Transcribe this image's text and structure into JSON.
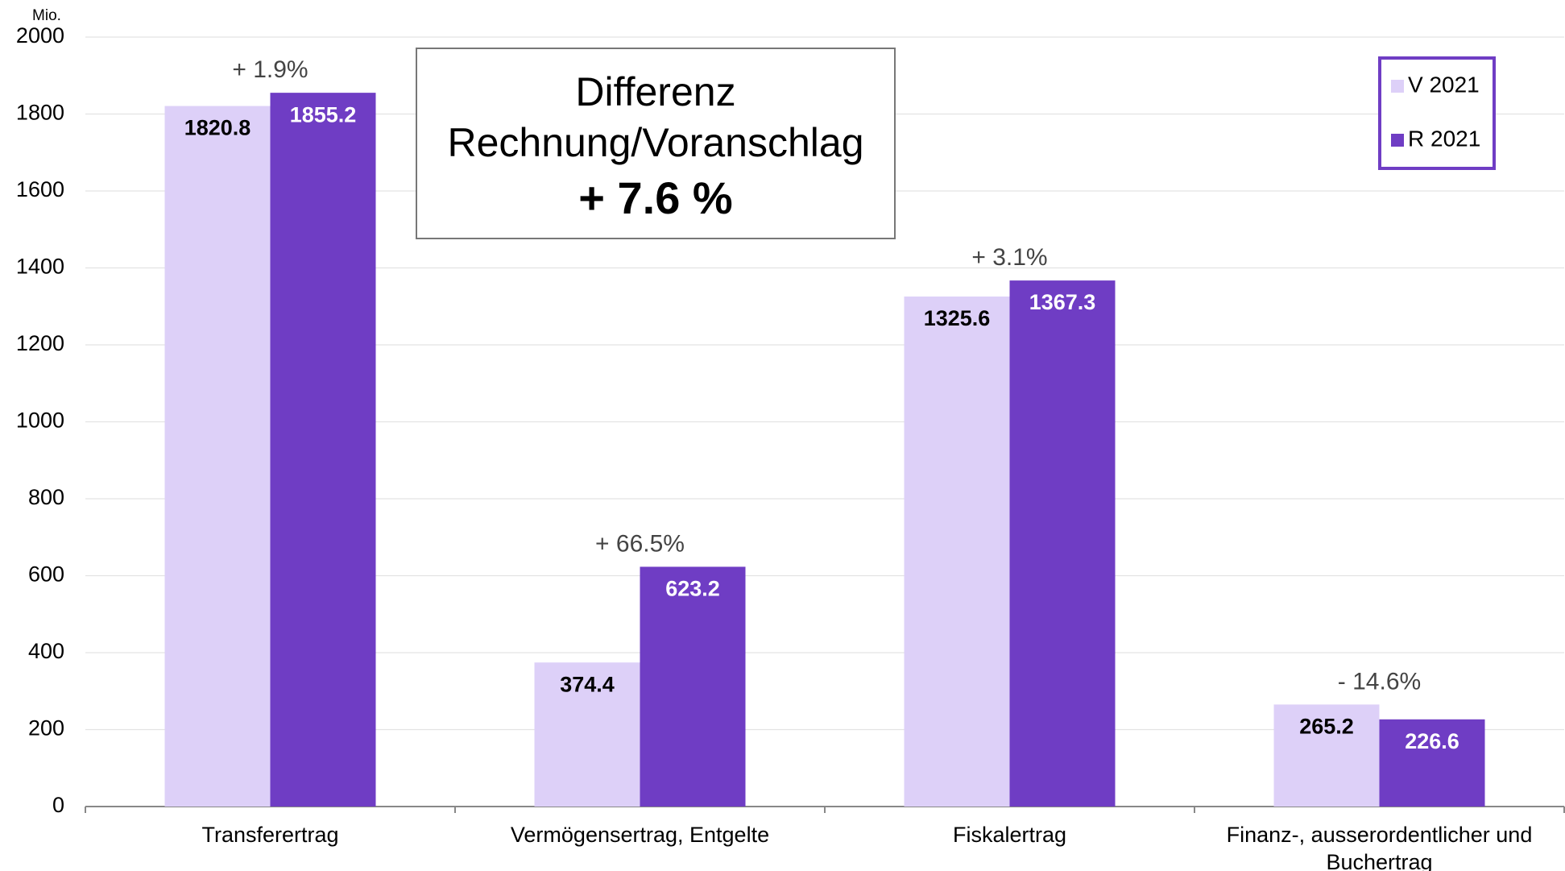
{
  "chart_data": {
    "type": "bar",
    "y_unit": "Mio.",
    "categories": [
      "Transferertrag",
      "Vermögensertrag, Entgelte",
      "Fiskalertrag",
      "Finanz-, ausserordentlicher und Buchertrag"
    ],
    "series": [
      {
        "name": "V 2021",
        "color": "#ddd0f8",
        "values": [
          1820.8,
          374.4,
          1325.6,
          265.2
        ]
      },
      {
        "name": "R 2021",
        "color": "#6f3dc4",
        "values": [
          1855.2,
          623.2,
          1367.3,
          226.6
        ]
      }
    ],
    "annotations": [
      "+ 1.9%",
      "+ 66.5%",
      "+ 3.1%",
      "- 14.6%"
    ],
    "textbox": [
      "Differenz",
      "Rechnung/Voranschlag",
      "+ 7.6 %"
    ],
    "ylim": [
      0,
      2000
    ],
    "yticks": [
      0,
      200,
      400,
      600,
      800,
      1000,
      1200,
      1400,
      1600,
      1800,
      2000
    ],
    "grid": true,
    "legend": "top-right"
  }
}
